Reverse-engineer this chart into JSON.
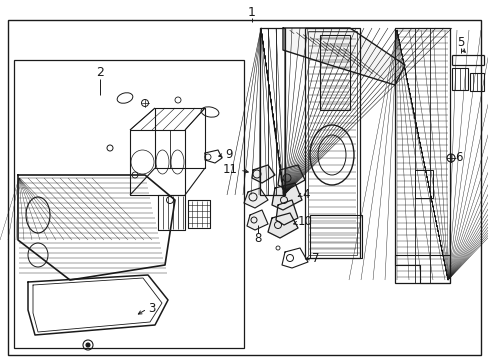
{
  "bg_color": "#ffffff",
  "border_color": "#1a1a1a",
  "lc": "#1a1a1a",
  "fig_width": 4.89,
  "fig_height": 3.6,
  "dpi": 100
}
